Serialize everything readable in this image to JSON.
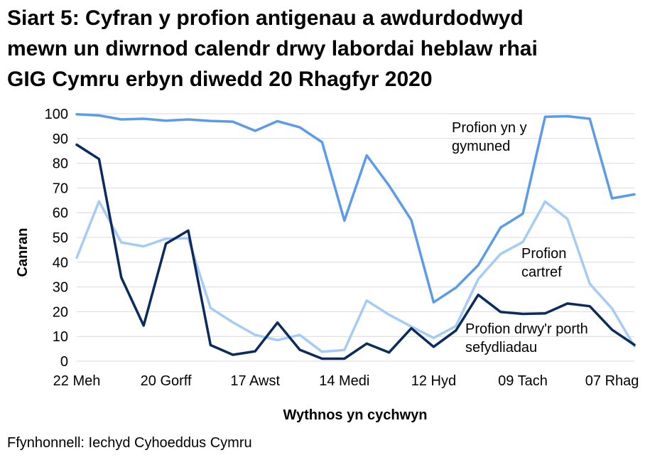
{
  "title_lines": [
    "Siart 5: Cyfran y profion antigenau a awdurdodwyd",
    "mewn un diwrnod calendr drwy labordai heblaw rhai",
    "GIG Cymru erbyn diwedd 20 Rhagfyr 2020"
  ],
  "source": "Ffynhonnell: Iechyd Cyhoeddus Cymru",
  "chart_data": {
    "type": "line",
    "xlabel": "Wythnos yn cychwyn",
    "ylabel": "Canran",
    "ylim": [
      0,
      100
    ],
    "yticks": [
      0,
      10,
      20,
      30,
      40,
      50,
      60,
      70,
      80,
      90,
      100
    ],
    "grid": true,
    "legend": "none",
    "x": [
      "22 Meh",
      "29 Meh",
      "06 Gorff",
      "13 Gorff",
      "20 Gorff",
      "27 Gorff",
      "03 Awst",
      "10 Awst",
      "17 Awst",
      "24 Awst",
      "31 Awst",
      "07 Medi",
      "14 Medi",
      "21 Medi",
      "28 Medi",
      "05 Hyd",
      "12 Hyd",
      "19 Hyd",
      "26 Hyd",
      "02 Tach",
      "09 Tach",
      "16 Tach",
      "23 Tach",
      "30 Tach",
      "07 Rhag",
      "14 Rhag"
    ],
    "tick_labels": [
      {
        "index": 0,
        "label": "22 Meh"
      },
      {
        "index": 4,
        "label": "20 Gorff"
      },
      {
        "index": 8,
        "label": "17 Awst"
      },
      {
        "index": 12,
        "label": "14 Medi"
      },
      {
        "index": 16,
        "label": "12 Hyd"
      },
      {
        "index": 20,
        "label": "09 Tach"
      },
      {
        "index": 24,
        "label": "07 Rhag"
      }
    ],
    "series": [
      {
        "name": "Profion yn y gymuned",
        "label_lines": [
          "Profion yn y",
          "gymuned"
        ],
        "color": "#5b9bea",
        "values": [
          99.8,
          99.3,
          97.7,
          98.0,
          97.2,
          97.7,
          97.1,
          96.8,
          93.1,
          97.0,
          94.5,
          88.5,
          56.8,
          83.2,
          71.0,
          57.0,
          23.8,
          29.7,
          38.8,
          54.0,
          59.6,
          98.8,
          99.0,
          98.0,
          65.8,
          67.4
        ]
      },
      {
        "name": "Profion cartref",
        "label_lines": [
          "Profion",
          "cartref"
        ],
        "color": "#a6cbf5",
        "values": [
          41.8,
          64.6,
          48.0,
          46.4,
          49.5,
          49.7,
          21.5,
          15.7,
          10.6,
          8.5,
          10.6,
          3.8,
          4.5,
          24.5,
          18.8,
          14.0,
          9.4,
          14.2,
          33.2,
          43.3,
          48.2,
          64.5,
          57.5,
          31.3,
          21.3,
          6.0
        ]
      },
      {
        "name": "Profion drwy'r porth sefydliadau",
        "label_lines": [
          "Profion drwy'r porth",
          "sefydliadau"
        ],
        "color": "#0a2b5c",
        "values": [
          87.5,
          81.7,
          33.8,
          14.4,
          47.5,
          52.8,
          6.5,
          2.6,
          4.0,
          15.6,
          4.6,
          1.0,
          1.0,
          7.1,
          3.5,
          13.3,
          5.8,
          12.4,
          26.8,
          19.9,
          19.1,
          19.3,
          23.3,
          22.2,
          12.7,
          6.6
        ]
      }
    ]
  }
}
